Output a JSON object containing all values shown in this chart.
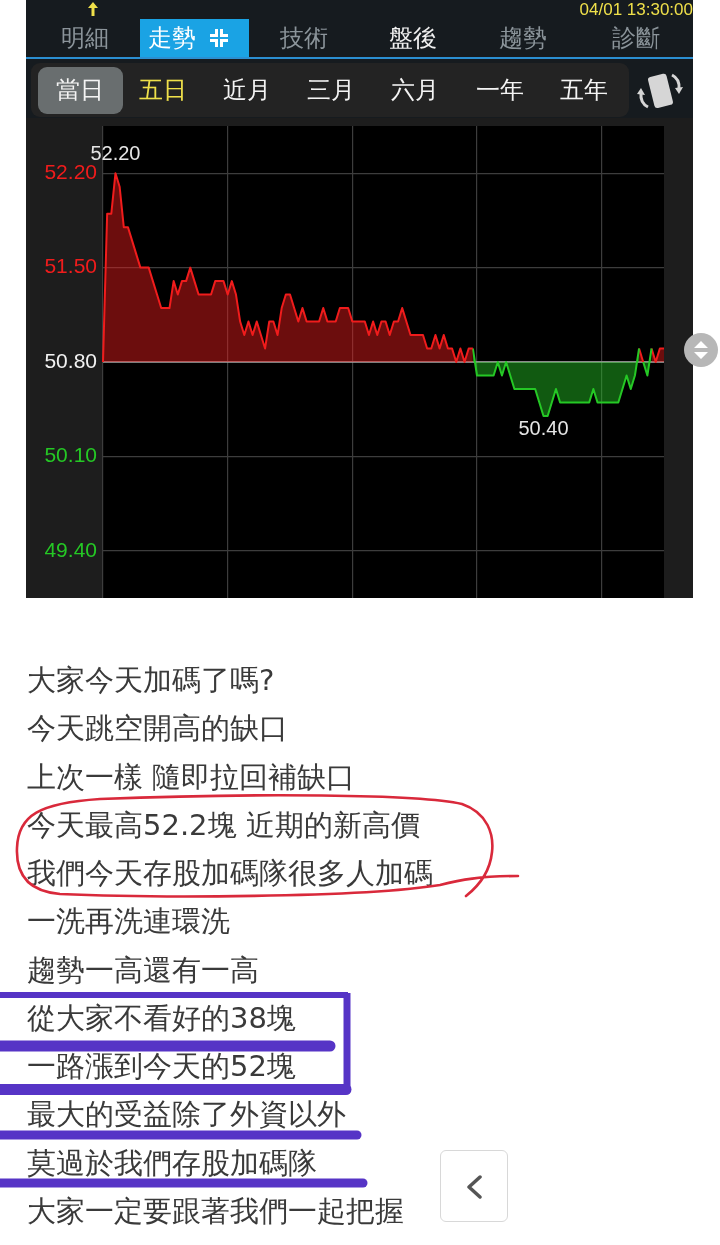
{
  "chart_data": {
    "type": "area",
    "categories": [
      null,
      null,
      null,
      null,
      null,
      null,
      null,
      null,
      null,
      null,
      null,
      null,
      null,
      null,
      null,
      null,
      null,
      null,
      null,
      null,
      null,
      null,
      null,
      null,
      null,
      null,
      null,
      null,
      null,
      null,
      null,
      null,
      null,
      null,
      null,
      null,
      null,
      null,
      null,
      null,
      null,
      null,
      null,
      null,
      null,
      null,
      null,
      null,
      null,
      null,
      null,
      null,
      null,
      null,
      null,
      null,
      null,
      null,
      null,
      null,
      null,
      null,
      null,
      null,
      null,
      null,
      null,
      null,
      null,
      null,
      null,
      null,
      null,
      null,
      null,
      null,
      null,
      null,
      null,
      null,
      null,
      null,
      null,
      null,
      null,
      null,
      null,
      null,
      null,
      null,
      null,
      null,
      null,
      null,
      null,
      null,
      null,
      null,
      null,
      null,
      null,
      null,
      null,
      null,
      null,
      null,
      null,
      null,
      null,
      null,
      null,
      null,
      null,
      null,
      null,
      null,
      null,
      null,
      null,
      null,
      null,
      null,
      null,
      null,
      null,
      null,
      null,
      null,
      null,
      null,
      null,
      null,
      null,
      null,
      null,
      null
    ],
    "series": [
      {
        "color": "#f01c1c",
        "values": [
          50.8,
          51.9,
          51.9,
          52.2,
          52.1,
          51.8,
          51.8,
          51.7,
          51.6,
          51.5,
          51.5,
          51.5,
          51.4,
          51.3,
          51.2,
          51.2,
          51.2,
          51.4,
          51.3,
          51.4,
          51.4,
          51.5,
          51.4,
          51.3,
          51.3,
          51.3,
          51.3,
          51.4,
          51.4,
          51.4,
          51.3,
          51.4,
          51.3,
          51.1,
          51.0,
          51.1,
          51.0,
          51.1,
          51.0,
          50.9,
          51.1,
          51.1,
          51.0,
          51.2,
          51.3,
          51.3,
          51.2,
          51.1,
          51.2,
          51.1,
          51.1,
          51.1,
          51.1,
          51.2,
          51.1,
          51.1,
          51.1,
          51.2,
          51.2,
          51.2,
          51.1,
          51.1,
          51.1,
          51.1,
          51.0,
          51.1,
          51.0,
          51.1,
          51.1,
          51.0,
          51.1,
          51.1,
          51.2,
          51.1,
          51.0,
          51.0,
          51.0,
          51.0,
          50.9,
          50.9,
          51.0,
          50.9,
          51.0,
          50.9,
          50.9,
          50.8,
          50.9,
          50.8,
          50.9,
          50.9,
          null,
          null,
          null,
          null,
          null,
          null,
          null,
          null,
          null,
          null,
          null,
          null,
          null,
          null,
          null,
          null,
          null,
          null,
          null,
          null,
          null,
          null,
          null,
          null,
          null,
          null,
          null,
          null,
          null,
          null,
          null,
          null,
          null,
          null,
          null,
          null,
          null,
          null,
          null,
          null,
          null,
          null,
          null,
          null,
          null,
          null
        ]
      },
      {
        "color": "#25c825",
        "values": [
          null,
          null,
          null,
          null,
          null,
          null,
          null,
          null,
          null,
          null,
          null,
          null,
          null,
          null,
          null,
          null,
          null,
          null,
          null,
          null,
          null,
          null,
          null,
          null,
          null,
          null,
          null,
          null,
          null,
          null,
          null,
          null,
          null,
          null,
          null,
          null,
          null,
          null,
          null,
          null,
          null,
          null,
          null,
          null,
          null,
          null,
          null,
          null,
          null,
          null,
          null,
          null,
          null,
          null,
          null,
          null,
          null,
          null,
          null,
          null,
          null,
          null,
          null,
          null,
          null,
          null,
          null,
          null,
          null,
          null,
          null,
          null,
          null,
          null,
          null,
          null,
          null,
          null,
          null,
          null,
          null,
          null,
          null,
          null,
          null,
          null,
          null,
          null,
          null,
          50.9,
          50.7,
          50.7,
          50.7,
          50.7,
          50.7,
          50.8,
          50.7,
          50.8,
          50.7,
          50.6,
          50.6,
          50.6,
          50.6,
          50.6,
          50.6,
          50.5,
          50.4,
          50.4,
          50.5,
          50.6,
          50.5,
          50.5,
          50.5,
          50.5,
          50.5,
          50.5,
          50.5,
          50.5,
          50.6,
          50.5,
          50.5,
          50.5,
          50.5,
          50.5,
          50.5,
          50.6,
          50.7,
          50.6,
          50.7,
          50.9,
          null,
          null,
          null,
          null,
          null,
          null
        ]
      },
      {
        "color": "#f01c1c",
        "values": [
          null,
          null,
          null,
          null,
          null,
          null,
          null,
          null,
          null,
          null,
          null,
          null,
          null,
          null,
          null,
          null,
          null,
          null,
          null,
          null,
          null,
          null,
          null,
          null,
          null,
          null,
          null,
          null,
          null,
          null,
          null,
          null,
          null,
          null,
          null,
          null,
          null,
          null,
          null,
          null,
          null,
          null,
          null,
          null,
          null,
          null,
          null,
          null,
          null,
          null,
          null,
          null,
          null,
          null,
          null,
          null,
          null,
          null,
          null,
          null,
          null,
          null,
          null,
          null,
          null,
          null,
          null,
          null,
          null,
          null,
          null,
          null,
          null,
          null,
          null,
          null,
          null,
          null,
          null,
          null,
          null,
          null,
          null,
          null,
          null,
          null,
          null,
          null,
          null,
          null,
          null,
          null,
          null,
          null,
          null,
          null,
          null,
          null,
          null,
          null,
          null,
          null,
          null,
          null,
          null,
          null,
          null,
          null,
          null,
          null,
          null,
          null,
          null,
          null,
          null,
          null,
          null,
          null,
          null,
          null,
          null,
          null,
          null,
          null,
          null,
          null,
          null,
          null,
          null,
          50.9,
          50.8,
          null,
          null,
          null,
          null,
          null
        ]
      },
      {
        "color": "#25c825",
        "values": [
          null,
          null,
          null,
          null,
          null,
          null,
          null,
          null,
          null,
          null,
          null,
          null,
          null,
          null,
          null,
          null,
          null,
          null,
          null,
          null,
          null,
          null,
          null,
          null,
          null,
          null,
          null,
          null,
          null,
          null,
          null,
          null,
          null,
          null,
          null,
          null,
          null,
          null,
          null,
          null,
          null,
          null,
          null,
          null,
          null,
          null,
          null,
          null,
          null,
          null,
          null,
          null,
          null,
          null,
          null,
          null,
          null,
          null,
          null,
          null,
          null,
          null,
          null,
          null,
          null,
          null,
          null,
          null,
          null,
          null,
          null,
          null,
          null,
          null,
          null,
          null,
          null,
          null,
          null,
          null,
          null,
          null,
          null,
          null,
          null,
          null,
          null,
          null,
          null,
          null,
          null,
          null,
          null,
          null,
          null,
          null,
          null,
          null,
          null,
          null,
          null,
          null,
          null,
          null,
          null,
          null,
          null,
          null,
          null,
          null,
          null,
          null,
          null,
          null,
          null,
          null,
          null,
          null,
          null,
          null,
          null,
          null,
          null,
          null,
          null,
          null,
          null,
          null,
          null,
          null,
          50.8,
          50.7,
          50.9,
          null,
          null,
          null
        ]
      },
      {
        "color": "#f01c1c",
        "values": [
          null,
          null,
          null,
          null,
          null,
          null,
          null,
          null,
          null,
          null,
          null,
          null,
          null,
          null,
          null,
          null,
          null,
          null,
          null,
          null,
          null,
          null,
          null,
          null,
          null,
          null,
          null,
          null,
          null,
          null,
          null,
          null,
          null,
          null,
          null,
          null,
          null,
          null,
          null,
          null,
          null,
          null,
          null,
          null,
          null,
          null,
          null,
          null,
          null,
          null,
          null,
          null,
          null,
          null,
          null,
          null,
          null,
          null,
          null,
          null,
          null,
          null,
          null,
          null,
          null,
          null,
          null,
          null,
          null,
          null,
          null,
          null,
          null,
          null,
          null,
          null,
          null,
          null,
          null,
          null,
          null,
          null,
          null,
          null,
          null,
          null,
          null,
          null,
          null,
          null,
          null,
          null,
          null,
          null,
          null,
          null,
          null,
          null,
          null,
          null,
          null,
          null,
          null,
          null,
          null,
          null,
          null,
          null,
          null,
          null,
          null,
          null,
          null,
          null,
          null,
          null,
          null,
          null,
          null,
          null,
          null,
          null,
          null,
          null,
          null,
          null,
          null,
          null,
          null,
          null,
          null,
          null,
          50.9,
          50.8,
          50.9,
          50.9
        ]
      }
    ],
    "ylim": [
      49.05,
      52.55
    ],
    "yticks": [
      {
        "value": 49.4,
        "label": "49.40"
      },
      {
        "value": 50.1,
        "label": "50.10"
      },
      {
        "value": 50.8,
        "label": "50.80"
      },
      {
        "value": 51.5,
        "label": "51.50"
      },
      {
        "value": 52.2,
        "label": "52.20"
      }
    ],
    "grid": true,
    "tick_labels": "y",
    "ref_lines": [
      {
        "axis": "y",
        "value": 50.8,
        "color": "#a4a4a4"
      }
    ],
    "annotations": [
      "04/01 13:30:00",
      "明細",
      "走勢",
      "技術",
      "盤後",
      "趨勢",
      "診斷",
      "當日",
      "五日",
      "近月",
      "三月",
      "六月",
      "一年",
      "五年",
      {
        "text": "52.20",
        "y": 52.2
      },
      {
        "text": "50.40",
        "y": 50.4
      },
      "大家今天加碼了嗎?",
      "今天跳空開高的缺口",
      "上次一樣 隨即拉回補缺口",
      "今天最高52.2塊 近期的新高價",
      "我們今天存股加碼隊很多人加碼",
      "一洗再洗連環洗",
      "趨勢一高還有一高",
      "從大家不看好的38塊",
      "一路漲到今天的52塊",
      "最大的受益除了外資以外",
      "莫過於我們存股加碼隊",
      "大家一定要跟著我們一起把握"
    ]
  }
}
